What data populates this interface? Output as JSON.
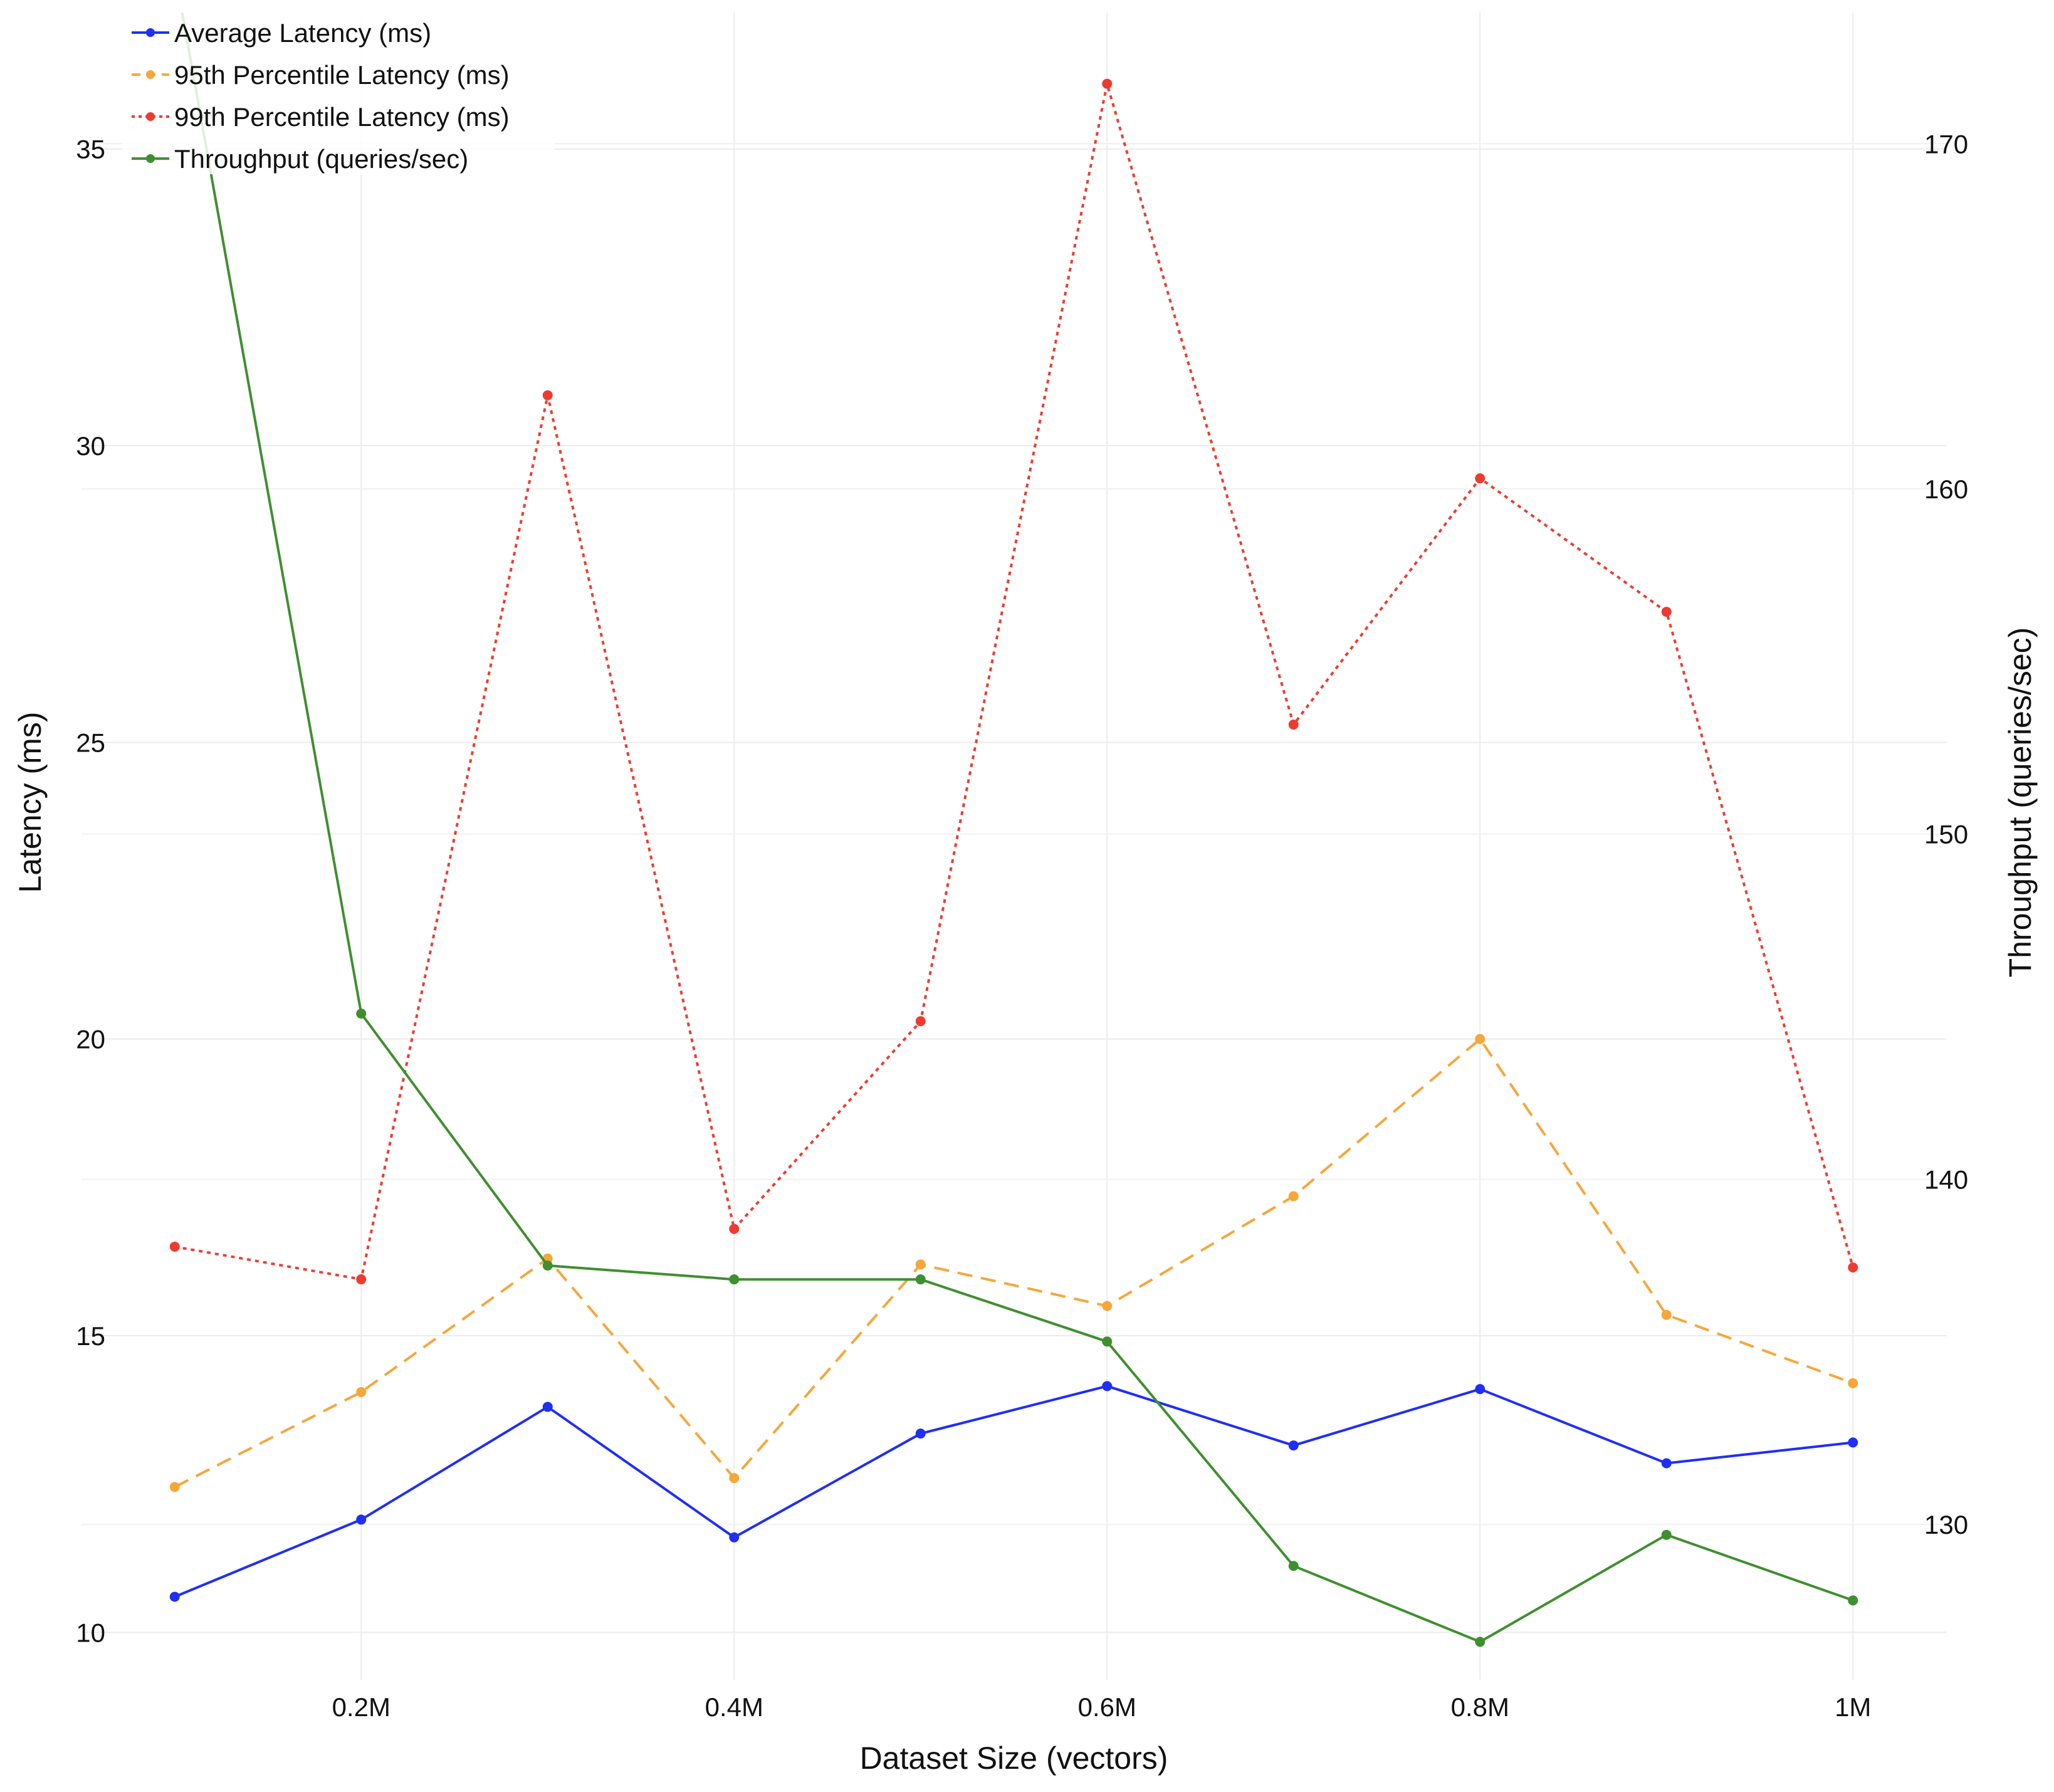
{
  "chart_data": {
    "type": "line",
    "title": "",
    "xlabel": "Dataset Size (vectors)",
    "ylabel": "Latency (ms)",
    "y2label": "Throughput (queries/sec)",
    "x": [
      0.1,
      0.2,
      0.3,
      0.4,
      0.5,
      0.6,
      0.7,
      0.8,
      0.9,
      1.0
    ],
    "x_unit": "M vectors",
    "xlim": [
      0.05,
      1.05
    ],
    "xticks": [
      {
        "value": 0.2,
        "label": "0.2M"
      },
      {
        "value": 0.4,
        "label": "0.4M"
      },
      {
        "value": 0.6,
        "label": "0.6M"
      },
      {
        "value": 0.8,
        "label": "0.8M"
      },
      {
        "value": 1.0,
        "label": "1M"
      }
    ],
    "ylim": [
      9.2,
      37.3
    ],
    "yticks": [
      10,
      15,
      20,
      25,
      30,
      35
    ],
    "y2lim": [
      125.5,
      173.8
    ],
    "y2ticks": [
      130,
      140,
      150,
      160,
      170
    ],
    "grid": true,
    "legend_position": "top-left",
    "series": [
      {
        "name": "Average Latency (ms)",
        "axis": "left",
        "color": "#1f2ff5",
        "dash": "solid",
        "values": [
          10.6,
          11.9,
          13.8,
          11.6,
          13.35,
          14.15,
          13.15,
          14.1,
          12.85,
          13.2
        ]
      },
      {
        "name": "95th Percentile Latency (ms)",
        "axis": "left",
        "color": "#f7a63a",
        "dash": "dashed",
        "values": [
          12.45,
          14.05,
          16.3,
          12.6,
          16.2,
          15.5,
          17.35,
          20.0,
          15.35,
          14.2
        ]
      },
      {
        "name": "99th Percentile Latency (ms)",
        "axis": "left",
        "color": "#ee3b30",
        "dash": "dotted",
        "values": [
          16.5,
          15.95,
          30.85,
          16.8,
          20.3,
          36.1,
          25.3,
          29.45,
          27.2,
          16.15
        ]
      },
      {
        "name": "Throughput (queries/sec)",
        "axis": "right",
        "color": "#3f8f2f",
        "dash": "solid",
        "values": [
          175.0,
          144.8,
          137.5,
          137.1,
          137.1,
          135.3,
          128.8,
          126.6,
          129.7,
          127.8
        ]
      }
    ]
  }
}
